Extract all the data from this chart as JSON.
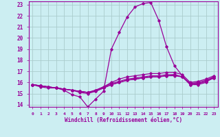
{
  "title": "",
  "xlabel": "Windchill (Refroidissement éolien,°C)",
  "background_color": "#cceef2",
  "grid_color": "#aacccc",
  "line_color": "#990099",
  "xlim": [
    -0.5,
    23.5
  ],
  "ylim": [
    13.8,
    23.3
  ],
  "yticks": [
    14,
    15,
    16,
    17,
    18,
    19,
    20,
    21,
    22,
    23
  ],
  "xticks": [
    0,
    1,
    2,
    3,
    4,
    5,
    6,
    7,
    8,
    9,
    10,
    11,
    12,
    13,
    14,
    15,
    16,
    17,
    18,
    19,
    20,
    21,
    22,
    23
  ],
  "curves": [
    [
      15.8,
      15.6,
      15.5,
      15.5,
      15.3,
      14.9,
      14.7,
      13.8,
      14.5,
      15.2,
      19.0,
      20.5,
      21.9,
      22.8,
      23.1,
      23.2,
      21.6,
      19.2,
      17.5,
      16.6,
      15.8,
      15.8,
      16.0,
      16.5
    ],
    [
      15.8,
      15.7,
      15.6,
      15.5,
      15.4,
      15.3,
      15.2,
      15.1,
      15.3,
      15.6,
      16.0,
      16.3,
      16.5,
      16.6,
      16.7,
      16.8,
      16.8,
      16.9,
      16.9,
      16.7,
      16.0,
      16.1,
      16.3,
      16.6
    ],
    [
      15.8,
      15.7,
      15.6,
      15.5,
      15.4,
      15.3,
      15.2,
      15.1,
      15.3,
      15.6,
      15.9,
      16.1,
      16.3,
      16.4,
      16.5,
      16.6,
      16.6,
      16.7,
      16.7,
      16.5,
      15.9,
      16.0,
      16.2,
      16.5
    ],
    [
      15.8,
      15.7,
      15.6,
      15.5,
      15.4,
      15.3,
      15.2,
      15.1,
      15.2,
      15.5,
      15.8,
      16.0,
      16.2,
      16.3,
      16.4,
      16.5,
      16.5,
      16.6,
      16.6,
      16.5,
      15.9,
      15.9,
      16.1,
      16.4
    ],
    [
      15.8,
      15.7,
      15.6,
      15.5,
      15.4,
      15.3,
      15.1,
      15.0,
      15.2,
      15.5,
      15.8,
      16.0,
      16.2,
      16.3,
      16.4,
      16.5,
      16.5,
      16.6,
      16.7,
      16.5,
      15.8,
      15.9,
      16.1,
      16.4
    ]
  ]
}
